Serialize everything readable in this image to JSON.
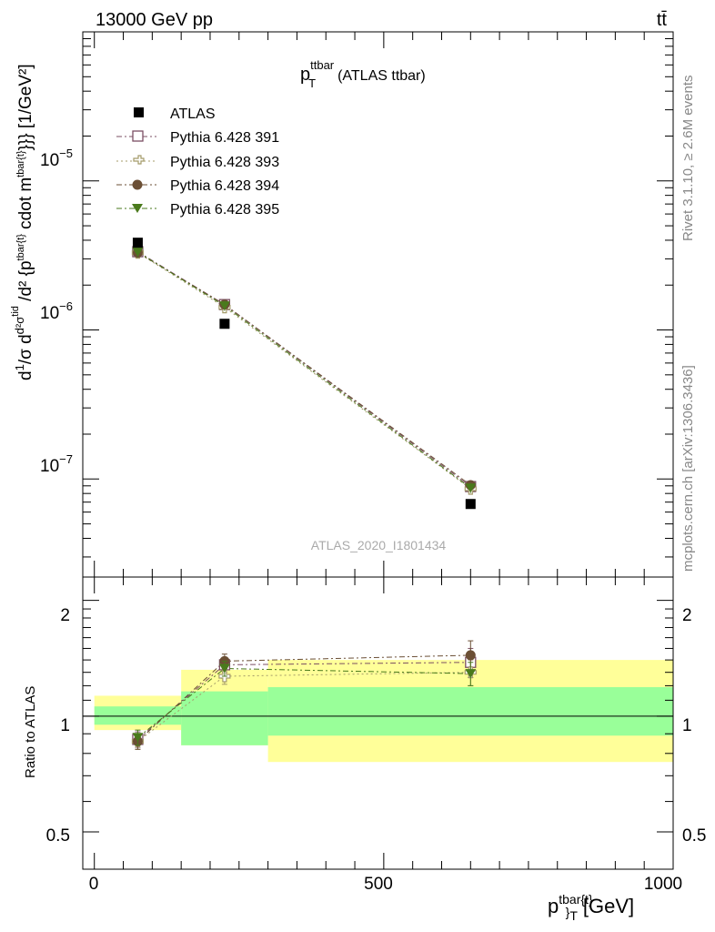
{
  "header": {
    "left": "13000 GeV pp",
    "right": "tt̄"
  },
  "plot": {
    "title_main": "p",
    "title_sup": "ttbar",
    "title_sub": "T",
    "title_suffix": "(ATLAS ttbar)",
    "watermark": "ATLAS_2020_I1801434",
    "side_text_top": "Rivet 3.1.10, ≥ 2.6M events",
    "side_text_bottom": "mcplots.cern.ch [arXiv:1306.3436]"
  },
  "axes": {
    "ylabel_main": "d¹/σ d d²σ^tid / d²{p^tbar{t}_T cdot m^tbar{t}}} [1/GeV²]",
    "ylabel_ratio": "Ratio to ATLAS",
    "xlabel_main": "p",
    "xlabel_sup": "tbar{t}",
    "xlabel_sub": "}",
    "xlabel_sub2": "T",
    "xlabel_unit": "[GeV]",
    "x_ticks": [
      "0",
      "500",
      "1000"
    ],
    "y_ticks_main": [
      {
        "mant": "10",
        "exp": "−5",
        "value": 1e-05
      },
      {
        "mant": "10",
        "exp": "−6",
        "value": 1e-06
      },
      {
        "mant": "10",
        "exp": "−7",
        "value": 1e-07
      }
    ],
    "y_ticks_ratio": [
      "2",
      "1",
      "0.5"
    ]
  },
  "legend": {
    "items": [
      {
        "label": "ATLAS",
        "color": "#000000",
        "marker": "square"
      },
      {
        "label": "Pythia 6.428 391",
        "color": "#7b4f63",
        "marker": "open-square"
      },
      {
        "label": "Pythia 6.428 393",
        "color": "#a49b6a",
        "marker": "open-cross"
      },
      {
        "label": "Pythia 6.428 394",
        "color": "#6b4f35",
        "marker": "circle"
      },
      {
        "label": "Pythia 6.428 395",
        "color": "#4a7a1c",
        "marker": "triangle-down"
      }
    ]
  },
  "chart_data": {
    "type": "scatter",
    "xlim": [
      -20,
      1000
    ],
    "ylim_main": [
      2.2e-08,
      0.0001
    ],
    "ylim_ratio": [
      0.4,
      2.3
    ],
    "yscale": "log",
    "bins": [
      {
        "lo": 0,
        "hi": 150
      },
      {
        "lo": 150,
        "hi": 300
      },
      {
        "lo": 300,
        "hi": 1000
      }
    ],
    "x": [
      75,
      225,
      650
    ],
    "atlas": {
      "name": "ATLAS",
      "values": [
        3.85e-06,
        1.1e-06,
        6.8e-08
      ]
    },
    "series": [
      {
        "name": "Pythia 6.428 391",
        "values": [
          3.35e-06,
          1.48e-06,
          8.9e-08
        ],
        "ratio": [
          0.87,
          1.36,
          1.38
        ],
        "ratio_err": [
          0.04,
          0.06,
          0.12
        ]
      },
      {
        "name": "Pythia 6.428 393",
        "values": [
          3.3e-06,
          1.42e-06,
          8.6e-08
        ],
        "ratio": [
          0.86,
          1.27,
          1.3
        ],
        "ratio_err": [
          0.04,
          0.06,
          0.1
        ]
      },
      {
        "name": "Pythia 6.428 394",
        "values": [
          3.3e-06,
          1.48e-06,
          9.1e-08
        ],
        "ratio": [
          0.86,
          1.39,
          1.44
        ],
        "ratio_err": [
          0.04,
          0.06,
          0.13
        ]
      },
      {
        "name": "Pythia 6.428 395",
        "values": [
          3.33e-06,
          1.45e-06,
          8.7e-08
        ],
        "ratio": [
          0.88,
          1.33,
          1.29
        ],
        "ratio_err": [
          0.04,
          0.06,
          0.09
        ]
      }
    ],
    "uncertainty_bands": {
      "stat": [
        [
          0.95,
          1.06
        ],
        [
          0.84,
          1.16
        ],
        [
          0.89,
          1.19
        ]
      ],
      "total": [
        [
          0.92,
          1.13
        ],
        [
          0.84,
          1.32
        ],
        [
          0.76,
          1.4
        ]
      ]
    },
    "band_colors": {
      "stat": "#99ff99",
      "total": "#ffff99"
    }
  }
}
